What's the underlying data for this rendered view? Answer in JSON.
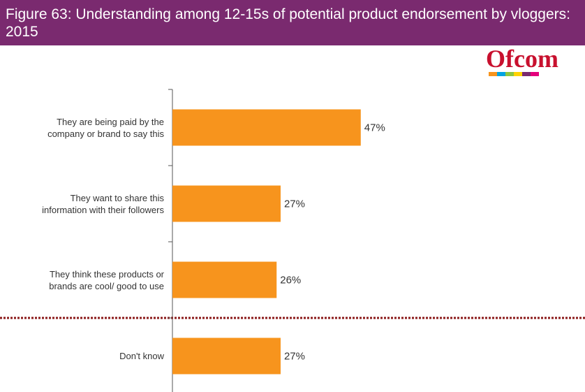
{
  "title": "Figure 63: Understanding among 12-15s of potential product endorsement by vloggers: 2015",
  "logo": "Ofcom",
  "chart_data": {
    "type": "bar",
    "orientation": "horizontal",
    "categories": [
      "They are being paid by the company or brand to say this",
      "They want to share this information with their followers",
      "They think these products or brands are cool/ good to use",
      "Don't know"
    ],
    "values": [
      47,
      27,
      26,
      27
    ],
    "value_labels": [
      "47%",
      "27%",
      "26%",
      "27%"
    ],
    "color": "#f7941d",
    "xlim": [
      0,
      100
    ]
  }
}
